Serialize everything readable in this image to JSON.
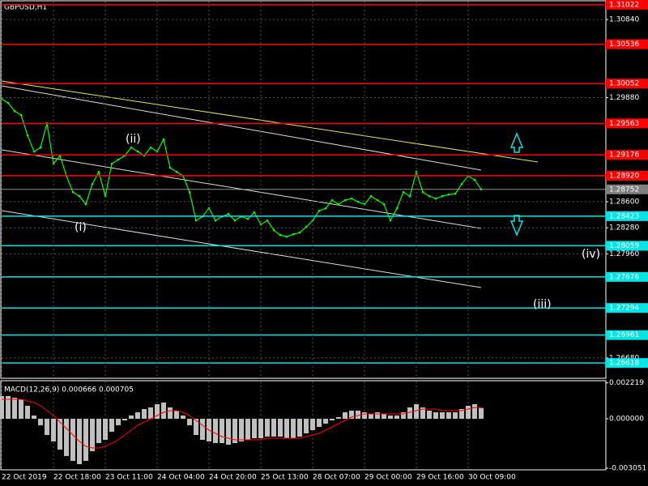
{
  "chart_data": [
    {
      "type": "line",
      "title": "GBPUSD,H1",
      "color": "#00ff00",
      "values": [
        1.29864,
        1.29814,
        1.29715,
        1.29665,
        1.29416,
        1.29217,
        1.29266,
        1.29565,
        1.29067,
        1.29167,
        1.28918,
        1.28718,
        1.28668,
        1.28569,
        1.28818,
        1.28967,
        1.28668,
        1.29067,
        1.29117,
        1.29167,
        1.29266,
        1.29217,
        1.29167,
        1.29266,
        1.29217,
        1.29366,
        1.29017,
        1.28967,
        1.28918,
        1.28718,
        1.28369,
        1.28419,
        1.28519,
        1.28369,
        1.28419,
        1.28449,
        1.28369,
        1.28419,
        1.28389,
        1.28469,
        1.2832,
        1.28369,
        1.2825,
        1.2819,
        1.2817,
        1.282,
        1.2822,
        1.2829,
        1.28369,
        1.28489,
        1.28519,
        1.28619,
        1.28569,
        1.28619,
        1.28639,
        1.28599,
        1.28569,
        1.28668,
        1.28619,
        1.28569,
        1.28369,
        1.28519,
        1.28718,
        1.28668,
        1.28967,
        1.28718,
        1.28668,
        1.28639,
        1.28668,
        1.28688,
        1.28698,
        1.28818,
        1.28918,
        1.28868,
        1.28752
      ],
      "ylim": [
        1.2642,
        1.3106
      ],
      "yticks": [
        {
          "value": 1.3084,
          "label": "1.30840"
        },
        {
          "value": 1.2988,
          "label": "1.29880"
        },
        {
          "value": 1.2892,
          "label": "1.28920"
        },
        {
          "value": 1.286,
          "label": "1.28600"
        },
        {
          "value": 1.2828,
          "label": "1.28280"
        },
        {
          "value": 1.2796,
          "label": "1.27960"
        },
        {
          "value": 1.2668,
          "label": "1.26680"
        }
      ],
      "grid": true,
      "levels": [
        {
          "value": 1.31022,
          "color": "#ff0000"
        },
        {
          "value": 1.30536,
          "color": "#ff0000"
        },
        {
          "value": 1.30052,
          "color": "#ff0000"
        },
        {
          "value": 1.29563,
          "color": "#ff0000"
        },
        {
          "value": 1.29176,
          "color": "#ff0000"
        },
        {
          "value": 1.2892,
          "label": "1.28920",
          "color": "#ff0000"
        },
        {
          "value": 1.28423,
          "color": "#00e5e5"
        },
        {
          "value": 1.28059,
          "color": "#00e5e5"
        },
        {
          "value": 1.27676,
          "color": "#00e5e5"
        },
        {
          "value": 1.27294,
          "color": "#00e5e5"
        },
        {
          "value": 1.26961,
          "color": "#00e5e5"
        },
        {
          "value": 1.26618,
          "color": "#00e5e5"
        }
      ],
      "last_price": 1.28752,
      "wave_labels": [
        "(i)",
        "(ii)",
        "(iii)",
        "(iv)"
      ]
    },
    {
      "type": "macd",
      "title": "MACD(12,26,9) 0.000666 0.000705",
      "categories": [
        "22 Oct 2019",
        null,
        null,
        null,
        null,
        null,
        null,
        null,
        "22 Oct 18:00",
        null,
        null,
        null,
        null,
        null,
        null,
        null,
        "23 Oct 11:00",
        null,
        null,
        null,
        null,
        null,
        null,
        null,
        "24 Oct 04:00",
        null,
        null,
        null,
        null,
        null,
        null,
        null,
        "24 Oct 20:00",
        null,
        null,
        null,
        null,
        null,
        null,
        null,
        "25 Oct 13:00",
        null,
        null,
        null,
        null,
        null,
        null,
        null,
        "28 Oct 07:00",
        null,
        null,
        null,
        null,
        null,
        null,
        null,
        "29 Oct 00:00",
        null,
        null,
        null,
        null,
        null,
        null,
        null,
        "29 Oct 16:00",
        null,
        null,
        null,
        null,
        null,
        null,
        null,
        "30 Oct 09:00",
        null,
        null
      ],
      "series": [
        {
          "color": "#c0c0c0",
          "values": [
            0.0014,
            0.0014,
            0.0013,
            0.0012,
            0.0008,
            0.0002,
            -0.0004,
            -0.001,
            -0.0014,
            -0.0019,
            -0.0023,
            -0.0026,
            -0.0028,
            -0.0026,
            -0.002,
            -0.0015,
            -0.0013,
            -0.0008,
            -0.0004,
            -0.0001,
            0.0002,
            0.0004,
            0.0006,
            0.0007,
            0.0009,
            0.001,
            0.0007,
            0.0005,
            0.0002,
            -0.0004,
            -0.001,
            -0.0013,
            -0.0014,
            -0.0015,
            -0.0015,
            -0.0016,
            -0.0015,
            -0.0014,
            -0.0013,
            -0.0012,
            -0.0012,
            -0.0011,
            -0.0011,
            -0.0011,
            -0.0012,
            -0.0012,
            -0.0011,
            -0.0009,
            -0.0007,
            -0.0005,
            -0.0003,
            -0.0001,
            0.0001,
            0.0004,
            0.0005,
            0.0005,
            0.0004,
            0.0003,
            0.0004,
            0.0003,
            0.0002,
            0.0002,
            0.0004,
            0.0007,
            0.0009,
            0.0007,
            0.0005,
            0.0004,
            0.0004,
            0.0004,
            0.0004,
            0.0006,
            0.0008,
            0.0009,
            0.000666
          ]
        },
        {
          "color": "#ff0000",
          "values": [
            0.0012,
            0.0012,
            0.0012,
            0.0012,
            0.0011,
            0.001,
            0.0008,
            0.0005,
            0.0002,
            -0.0002,
            -0.0006,
            -0.001,
            -0.0014,
            -0.0017,
            -0.0018,
            -0.0018,
            -0.0017,
            -0.0015,
            -0.0013,
            -0.001,
            -0.0007,
            -0.0004,
            -0.0002,
            0,
            0.0002,
            0.0004,
            0.0005,
            0.0005,
            0.0004,
            0.0002,
            -0.0001,
            -0.0004,
            -0.0007,
            -0.0009,
            -0.0011,
            -0.0012,
            -0.0013,
            -0.0013,
            -0.0013,
            -0.0013,
            -0.0013,
            -0.0012,
            -0.0012,
            -0.0012,
            -0.0012,
            -0.0012,
            -0.0012,
            -0.0011,
            -0.001,
            -0.0009,
            -0.0007,
            -0.0005,
            -0.0003,
            -0.0001,
            0.0001,
            0.0002,
            0.0003,
            0.0003,
            0.0003,
            0.0003,
            0.0003,
            0.0003,
            0.0003,
            0.0004,
            0.0005,
            0.0006,
            0.0006,
            0.0006,
            0.0005,
            0.0005,
            0.0005,
            0.0005,
            0.0006,
            0.0007,
            0.000705
          ]
        }
      ],
      "ylim": [
        -0.00315,
        0.00225
      ],
      "yticks": [
        0.002219,
        {
          "value": 0,
          "label": "0.000000"
        },
        -0.003051
      ]
    }
  ]
}
